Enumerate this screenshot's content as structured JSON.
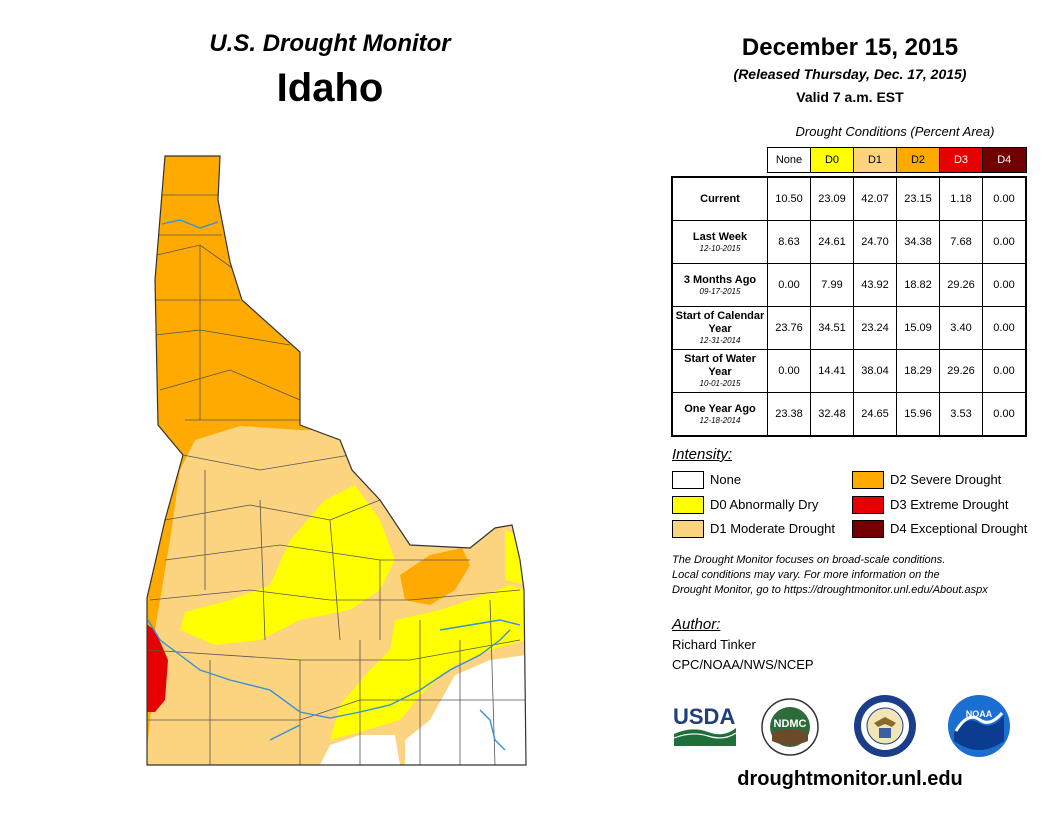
{
  "header": {
    "monitor_title": "U.S. Drought Monitor",
    "state": "Idaho",
    "date": "December 15, 2015",
    "released": "(Released Thursday, Dec. 17, 2015)",
    "valid": "Valid 7 a.m. EST"
  },
  "table": {
    "caption": "Drought Conditions (Percent Area)",
    "columns": [
      {
        "label": "None",
        "color": "#ffffff",
        "text_color": "#000000"
      },
      {
        "label": "D0",
        "color": "#ffff00",
        "text_color": "#000000"
      },
      {
        "label": "D1",
        "color": "#fcd37f",
        "text_color": "#000000"
      },
      {
        "label": "D2",
        "color": "#ffaa00",
        "text_color": "#000000"
      },
      {
        "label": "D3",
        "color": "#e60000",
        "text_color": "#ffffff"
      },
      {
        "label": "D4",
        "color": "#730000",
        "text_color": "#ffffff"
      }
    ],
    "rows": [
      {
        "label": "Current",
        "date": "",
        "values": [
          "10.50",
          "23.09",
          "42.07",
          "23.15",
          "1.18",
          "0.00"
        ]
      },
      {
        "label": "Last Week",
        "date": "12-10-2015",
        "values": [
          "8.63",
          "24.61",
          "24.70",
          "34.38",
          "7.68",
          "0.00"
        ]
      },
      {
        "label": "3 Months Ago",
        "date": "09-17-2015",
        "values": [
          "0.00",
          "7.99",
          "43.92",
          "18.82",
          "29.26",
          "0.00"
        ]
      },
      {
        "label": "Start of Calendar Year",
        "date": "12-31-2014",
        "values": [
          "23.76",
          "34.51",
          "23.24",
          "15.09",
          "3.40",
          "0.00"
        ]
      },
      {
        "label": "Start of Water Year",
        "date": "10-01-2015",
        "values": [
          "0.00",
          "14.41",
          "38.04",
          "18.29",
          "29.26",
          "0.00"
        ]
      },
      {
        "label": "One Year Ago",
        "date": "12-18-2014",
        "values": [
          "23.38",
          "32.48",
          "24.65",
          "15.96",
          "3.53",
          "0.00"
        ]
      }
    ]
  },
  "legend": {
    "title": "Intensity:",
    "items": [
      {
        "label": "None",
        "color": "#ffffff"
      },
      {
        "label": "D0 Abnormally Dry",
        "color": "#ffff00"
      },
      {
        "label": "D1 Moderate Drought",
        "color": "#fcd37f"
      },
      {
        "label": "D2 Severe Drought",
        "color": "#ffaa00"
      },
      {
        "label": "D3 Extreme Drought",
        "color": "#e60000"
      },
      {
        "label": "D4 Exceptional Drought",
        "color": "#730000"
      }
    ]
  },
  "disclaimer": [
    "The Drought Monitor focuses on broad-scale conditions.",
    "Local conditions may vary. For more information on the",
    "Drought Monitor, go to https://droughtmonitor.unl.edu/About.aspx"
  ],
  "author": {
    "title": "Author:",
    "name": "Richard Tinker",
    "org": "CPC/NOAA/NWS/NCEP"
  },
  "logos": {
    "usda": "USDA",
    "ndmc": "NDMC",
    "noaa": "NOAA"
  },
  "website": "droughtmonitor.unl.edu",
  "map_colors": {
    "none": "#ffffff",
    "d0": "#ffff00",
    "d1": "#fcd37f",
    "d2": "#ffaa00",
    "d3": "#e60000",
    "river": "#3a8fd9",
    "boundary": "#555555"
  }
}
